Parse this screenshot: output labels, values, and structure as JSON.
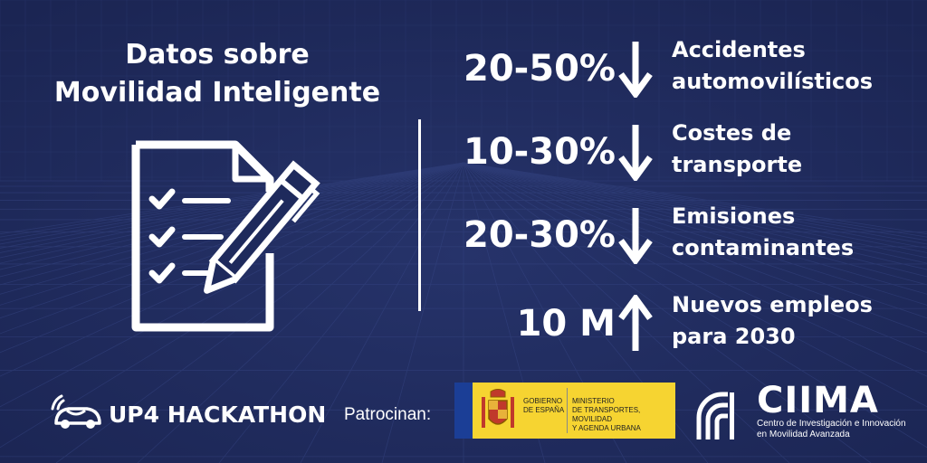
{
  "title": {
    "line1": "Datos sobre",
    "line2": "Movilidad Inteligente"
  },
  "stats": [
    {
      "value": "20-50%",
      "direction": "down",
      "label_line1": "Accidentes",
      "label_line2": "automovilísticos"
    },
    {
      "value": "10-30%",
      "direction": "down",
      "label_line1": "Costes de",
      "label_line2": "transporte"
    },
    {
      "value": "20-30%",
      "direction": "down",
      "label_line1": "Emisiones",
      "label_line2": "contaminantes"
    },
    {
      "value": "10 M",
      "direction": "up",
      "label_line1": "Nuevos empleos",
      "label_line2": "para 2030"
    }
  ],
  "footer": {
    "event_name": "UP4 HACKATHON",
    "sponsors_label": "Patrocinan:",
    "gov_logo": {
      "left_line1": "GOBIERNO",
      "left_line2": "DE ESPAÑA",
      "right_line1": "MINISTERIO",
      "right_line2": "DE TRANSPORTES, MOVILIDAD",
      "right_line3": "Y AGENDA URBANA"
    },
    "ciima": {
      "name": "CIIMA",
      "sub_line1": "Centro de Investigación e Innovación",
      "sub_line2": "en Movilidad Avanzada"
    }
  },
  "colors": {
    "background": "#1e2a5c",
    "text": "#ffffff",
    "gov_yellow": "#f6d431",
    "eu_blue": "#1b3e96"
  },
  "icons": [
    "checklist-document-pencil-icon",
    "arrow-down-icon",
    "arrow-up-icon",
    "connected-car-icon",
    "ciima-logo-mark-icon",
    "spain-coat-of-arms-icon"
  ]
}
